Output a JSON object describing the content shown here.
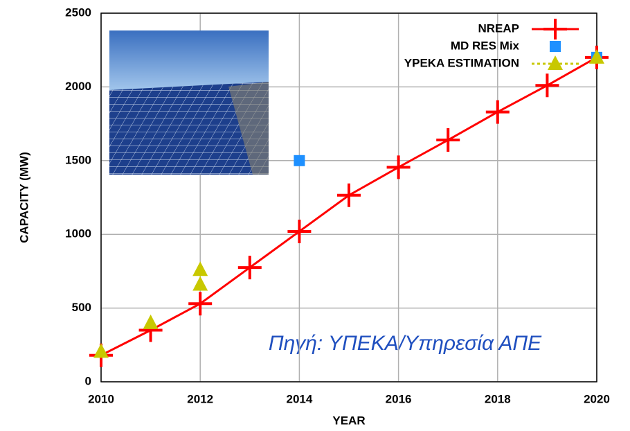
{
  "chart_data": {
    "type": "line",
    "x_label": "YEAR",
    "y_label": "CAPACITY (MW)",
    "annotation": "Πηγή: ΥΠΕΚΑ/Υπηρεσία ΑΠΕ",
    "xlim": [
      2010,
      2020
    ],
    "xticks": [
      2010,
      2012,
      2014,
      2016,
      2018,
      2020
    ],
    "ylim": [
      0,
      2500
    ],
    "yticks": [
      0,
      500,
      1000,
      1500,
      2000,
      2500
    ],
    "grid": true,
    "legend": "top-right",
    "series": [
      {
        "name": "NREAP",
        "color": "#ff0000",
        "marker": "plus",
        "line": true,
        "x": [
          2010,
          2011,
          2012,
          2013,
          2014,
          2015,
          2016,
          2017,
          2018,
          2019,
          2020
        ],
        "values": [
          180,
          350,
          530,
          775,
          1020,
          1265,
          1455,
          1640,
          1830,
          2010,
          2200
        ]
      },
      {
        "name": "MD RES Mix",
        "color": "#1e90ff",
        "marker": "square",
        "line": false,
        "x": [
          2014,
          2020
        ],
        "values": [
          1500,
          2200
        ]
      },
      {
        "name": "YPEKA ESTIMATION",
        "color": "#c8c800",
        "marker": "triangle",
        "line": false,
        "x": [
          2010,
          2011,
          2012,
          2012,
          2020
        ],
        "values": [
          205,
          400,
          660,
          760,
          2200
        ]
      }
    ]
  }
}
